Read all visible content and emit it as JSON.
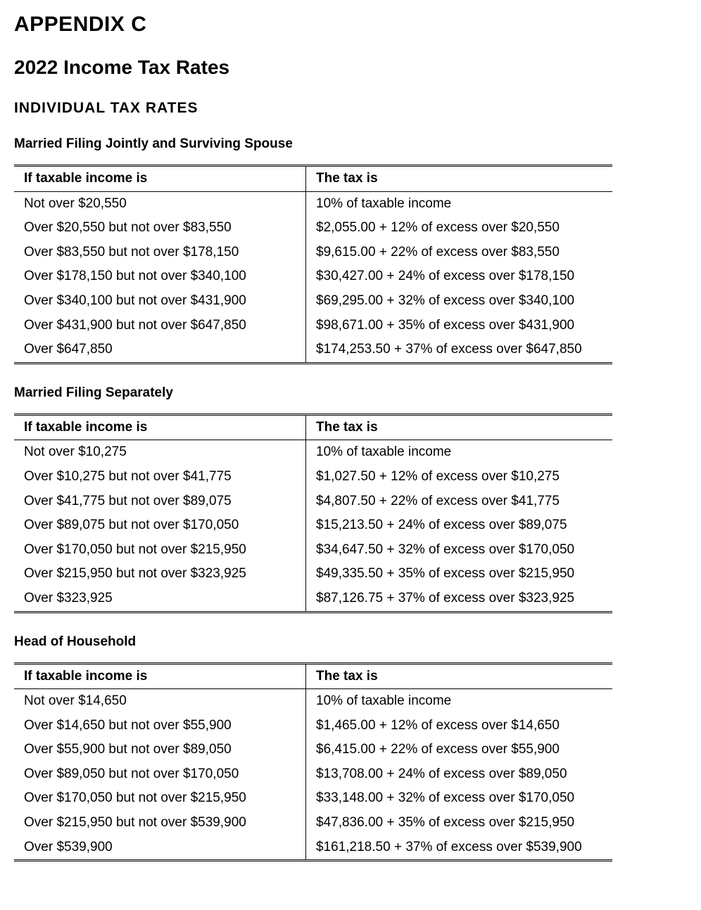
{
  "appendix_label": "APPENDIX C",
  "page_title": "2022 Income Tax Rates",
  "section_heading": "INDIVIDUAL TAX RATES",
  "header_income": "If taxable income is",
  "header_tax": "The tax is",
  "tables": [
    {
      "title": "Married Filing Jointly and Surviving Spouse",
      "rows": [
        {
          "income": "Not over $20,550",
          "tax": "10% of taxable income"
        },
        {
          "income": "Over $20,550 but not over $83,550",
          "tax": "$2,055.00 + 12% of excess over $20,550"
        },
        {
          "income": "Over $83,550 but not over $178,150",
          "tax": "$9,615.00 + 22% of excess over $83,550"
        },
        {
          "income": "Over $178,150 but not over $340,100",
          "tax": "$30,427.00 + 24% of excess over $178,150"
        },
        {
          "income": "Over $340,100 but not over $431,900",
          "tax": "$69,295.00 + 32% of excess over $340,100"
        },
        {
          "income": "Over $431,900 but not over $647,850",
          "tax": "$98,671.00 + 35% of excess over $431,900"
        },
        {
          "income": "Over $647,850",
          "tax": "$174,253.50 + 37% of excess over $647,850"
        }
      ]
    },
    {
      "title": "Married Filing Separately",
      "rows": [
        {
          "income": "Not over $10,275",
          "tax": "10% of taxable income"
        },
        {
          "income": "Over $10,275 but not over $41,775",
          "tax": "$1,027.50 + 12% of excess over $10,275"
        },
        {
          "income": "Over $41,775 but not over $89,075",
          "tax": "$4,807.50 + 22% of excess over $41,775"
        },
        {
          "income": "Over $89,075 but not over $170,050",
          "tax": "$15,213.50 + 24% of excess over $89,075"
        },
        {
          "income": "Over $170,050 but not over $215,950",
          "tax": "$34,647.50 + 32% of excess over $170,050"
        },
        {
          "income": "Over $215,950 but not over $323,925",
          "tax": "$49,335.50 + 35% of excess over $215,950"
        },
        {
          "income": "Over $323,925",
          "tax": "$87,126.75 + 37% of excess over $323,925"
        }
      ]
    },
    {
      "title": "Head of Household",
      "rows": [
        {
          "income": "Not over $14,650",
          "tax": "10% of taxable income"
        },
        {
          "income": "Over $14,650 but not over $55,900",
          "tax": "$1,465.00 + 12% of excess over $14,650"
        },
        {
          "income": "Over $55,900 but not over $89,050",
          "tax": "$6,415.00 + 22% of excess over $55,900"
        },
        {
          "income": "Over $89,050 but not over $170,050",
          "tax": "$13,708.00 + 24% of excess over $89,050"
        },
        {
          "income": "Over $170,050 but not over $215,950",
          "tax": "$33,148.00 + 32% of excess over $170,050"
        },
        {
          "income": "Over $215,950 but not over $539,900",
          "tax": "$47,836.00 + 35% of excess over $215,950"
        },
        {
          "income": "Over $539,900",
          "tax": "$161,218.50 + 37% of excess over $539,900"
        }
      ]
    }
  ]
}
